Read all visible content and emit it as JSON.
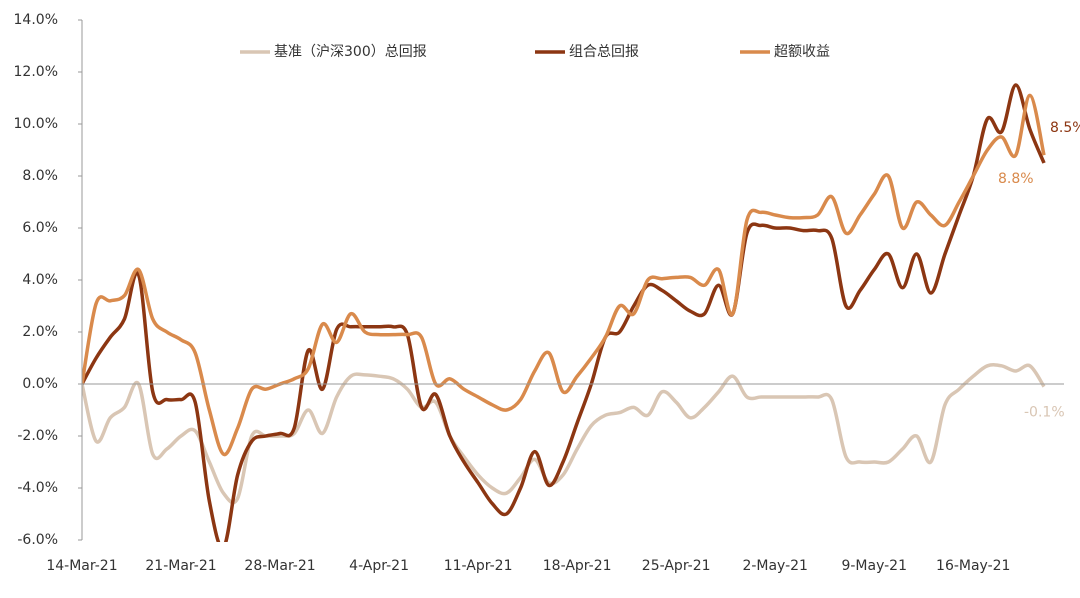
{
  "chart_data": {
    "type": "line",
    "categories": [
      "14-Mar-21",
      null,
      null,
      null,
      null,
      null,
      null,
      "21-Mar-21",
      null,
      null,
      null,
      null,
      null,
      null,
      "28-Mar-21",
      null,
      null,
      null,
      null,
      null,
      null,
      "4-Apr-21",
      null,
      null,
      null,
      null,
      null,
      null,
      "11-Apr-21",
      null,
      null,
      null,
      null,
      null,
      null,
      "18-Apr-21",
      null,
      null,
      null,
      null,
      null,
      null,
      "25-Apr-21",
      null,
      null,
      null,
      null,
      null,
      null,
      "2-May-21",
      null,
      null,
      null,
      null,
      null,
      null,
      "9-May-21",
      null,
      null,
      null,
      null,
      null,
      null,
      "16-May-21",
      null,
      null,
      null,
      null,
      null
    ],
    "series": [
      {
        "name": "基准（沪深300）总回报",
        "color": "#d9c6b4",
        "values": [
          0,
          -2.2,
          -1.3,
          -0.9,
          0,
          -2.7,
          -2.5,
          -2.0,
          -1.8,
          -3.0,
          -4.2,
          -4.4,
          -2.0,
          -2.0,
          -2.0,
          -1.9,
          -1.0,
          -1.9,
          -0.5,
          0.3,
          0.35,
          0.3,
          0.2,
          -0.2,
          -0.9,
          -0.7,
          -2.0,
          -2.8,
          -3.5,
          -4.0,
          -4.2,
          -3.6,
          -2.9,
          -3.8,
          -3.5,
          -2.5,
          -1.6,
          -1.2,
          -1.1,
          -0.9,
          -1.2,
          -0.3,
          -0.7,
          -1.3,
          -0.9,
          -0.3,
          0.3,
          -0.5,
          -0.5,
          -0.5,
          -0.5,
          -0.5,
          -0.5,
          -0.6,
          -2.8,
          -3.0,
          -3.0,
          -3.0,
          -2.5,
          -2.0,
          -3.0,
          -0.8,
          -0.2,
          0.3,
          0.7,
          0.7,
          0.5,
          0.7,
          -0.1
        ],
        "value_labels": [
          null,
          null,
          null,
          null,
          null,
          null,
          null,
          null,
          null,
          null,
          null,
          null,
          null,
          null,
          null,
          null,
          null,
          null,
          null,
          null,
          null,
          null,
          null,
          null,
          null,
          null,
          null,
          null,
          null,
          null,
          null,
          null,
          null,
          null,
          null,
          null,
          null,
          null,
          null,
          null,
          null,
          null,
          null,
          null,
          null,
          null,
          null,
          null,
          null,
          null,
          null,
          null,
          null,
          null,
          null,
          null,
          null,
          null,
          null,
          null,
          null,
          null,
          null,
          null,
          null,
          null,
          null,
          null,
          "-0.1%"
        ]
      },
      {
        "name": "组合总回报",
        "color": "#8c3612",
        "values": [
          0,
          1.0,
          1.8,
          2.5,
          4.2,
          -0.3,
          -0.6,
          -0.6,
          -0.7,
          -4.5,
          -6.3,
          -3.5,
          -2.2,
          -2.0,
          -1.9,
          -1.7,
          1.3,
          -0.2,
          2.1,
          2.2,
          2.2,
          2.2,
          2.2,
          1.9,
          -0.9,
          -0.4,
          -2.0,
          -3.0,
          -3.8,
          -4.6,
          -5.0,
          -4.0,
          -2.6,
          -3.9,
          -3.0,
          -1.5,
          0,
          1.8,
          2.0,
          3.0,
          3.8,
          3.6,
          3.2,
          2.8,
          2.7,
          3.8,
          2.7,
          5.8,
          6.1,
          6.0,
          6.0,
          5.9,
          5.9,
          5.6,
          3.0,
          3.6,
          4.4,
          5.0,
          3.7,
          5.0,
          3.5,
          5.0,
          6.5,
          8.0,
          10.2,
          9.7,
          11.5,
          9.8,
          8.5
        ],
        "value_labels": [
          null,
          null,
          null,
          null,
          null,
          null,
          null,
          null,
          null,
          null,
          null,
          null,
          null,
          null,
          null,
          null,
          null,
          null,
          null,
          null,
          null,
          null,
          null,
          null,
          null,
          null,
          null,
          null,
          null,
          null,
          null,
          null,
          null,
          null,
          null,
          null,
          null,
          null,
          null,
          null,
          null,
          null,
          null,
          null,
          null,
          null,
          null,
          null,
          null,
          null,
          null,
          null,
          null,
          null,
          null,
          null,
          null,
          null,
          null,
          null,
          null,
          null,
          null,
          null,
          null,
          null,
          null,
          null,
          "8.5%"
        ]
      },
      {
        "name": "超额收益",
        "color": "#d98a4c",
        "values": [
          0,
          3.1,
          3.2,
          3.4,
          4.4,
          2.5,
          2.0,
          1.7,
          1.2,
          -1.0,
          -2.7,
          -1.7,
          -0.2,
          -0.2,
          0,
          0.2,
          0.6,
          2.3,
          1.6,
          2.7,
          2.0,
          1.9,
          1.9,
          1.9,
          1.8,
          0,
          0.2,
          -0.2,
          -0.5,
          -0.8,
          -1.0,
          -0.6,
          0.5,
          1.2,
          -0.3,
          0.3,
          1.0,
          1.8,
          3.0,
          2.7,
          4.0,
          4.05,
          4.1,
          4.1,
          3.8,
          4.4,
          2.7,
          6.3,
          6.6,
          6.5,
          6.4,
          6.4,
          6.5,
          7.2,
          5.8,
          6.5,
          7.3,
          8.0,
          6.0,
          7.0,
          6.5,
          6.1,
          7.0,
          8.0,
          9.0,
          9.5,
          8.8,
          11.1,
          8.8
        ],
        "value_labels": [
          null,
          null,
          null,
          null,
          null,
          null,
          null,
          null,
          null,
          null,
          null,
          null,
          null,
          null,
          null,
          null,
          null,
          null,
          null,
          null,
          null,
          null,
          null,
          null,
          null,
          null,
          null,
          null,
          null,
          null,
          null,
          null,
          null,
          null,
          null,
          null,
          null,
          null,
          null,
          null,
          null,
          null,
          null,
          null,
          null,
          null,
          null,
          null,
          null,
          null,
          null,
          null,
          null,
          null,
          null,
          null,
          null,
          null,
          null,
          null,
          null,
          null,
          null,
          null,
          null,
          null,
          null,
          null,
          "8.8%"
        ]
      }
    ],
    "ylim": [
      -6,
      14
    ],
    "yticks": [
      {
        "value": -6,
        "label": "-6.0%"
      },
      {
        "value": -4,
        "label": "-4.0%"
      },
      {
        "value": -2,
        "label": "-2.0%"
      },
      {
        "value": 0,
        "label": "0.0%"
      },
      {
        "value": 2,
        "label": "2.0%"
      },
      {
        "value": 4,
        "label": "4.0%"
      },
      {
        "value": 6,
        "label": "6.0%"
      },
      {
        "value": 8,
        "label": "8.0%"
      },
      {
        "value": 10,
        "label": "10.0%"
      },
      {
        "value": 12,
        "label": "12.0%"
      },
      {
        "value": 14,
        "label": "14.0%"
      }
    ],
    "grid": false,
    "legend": "top"
  }
}
